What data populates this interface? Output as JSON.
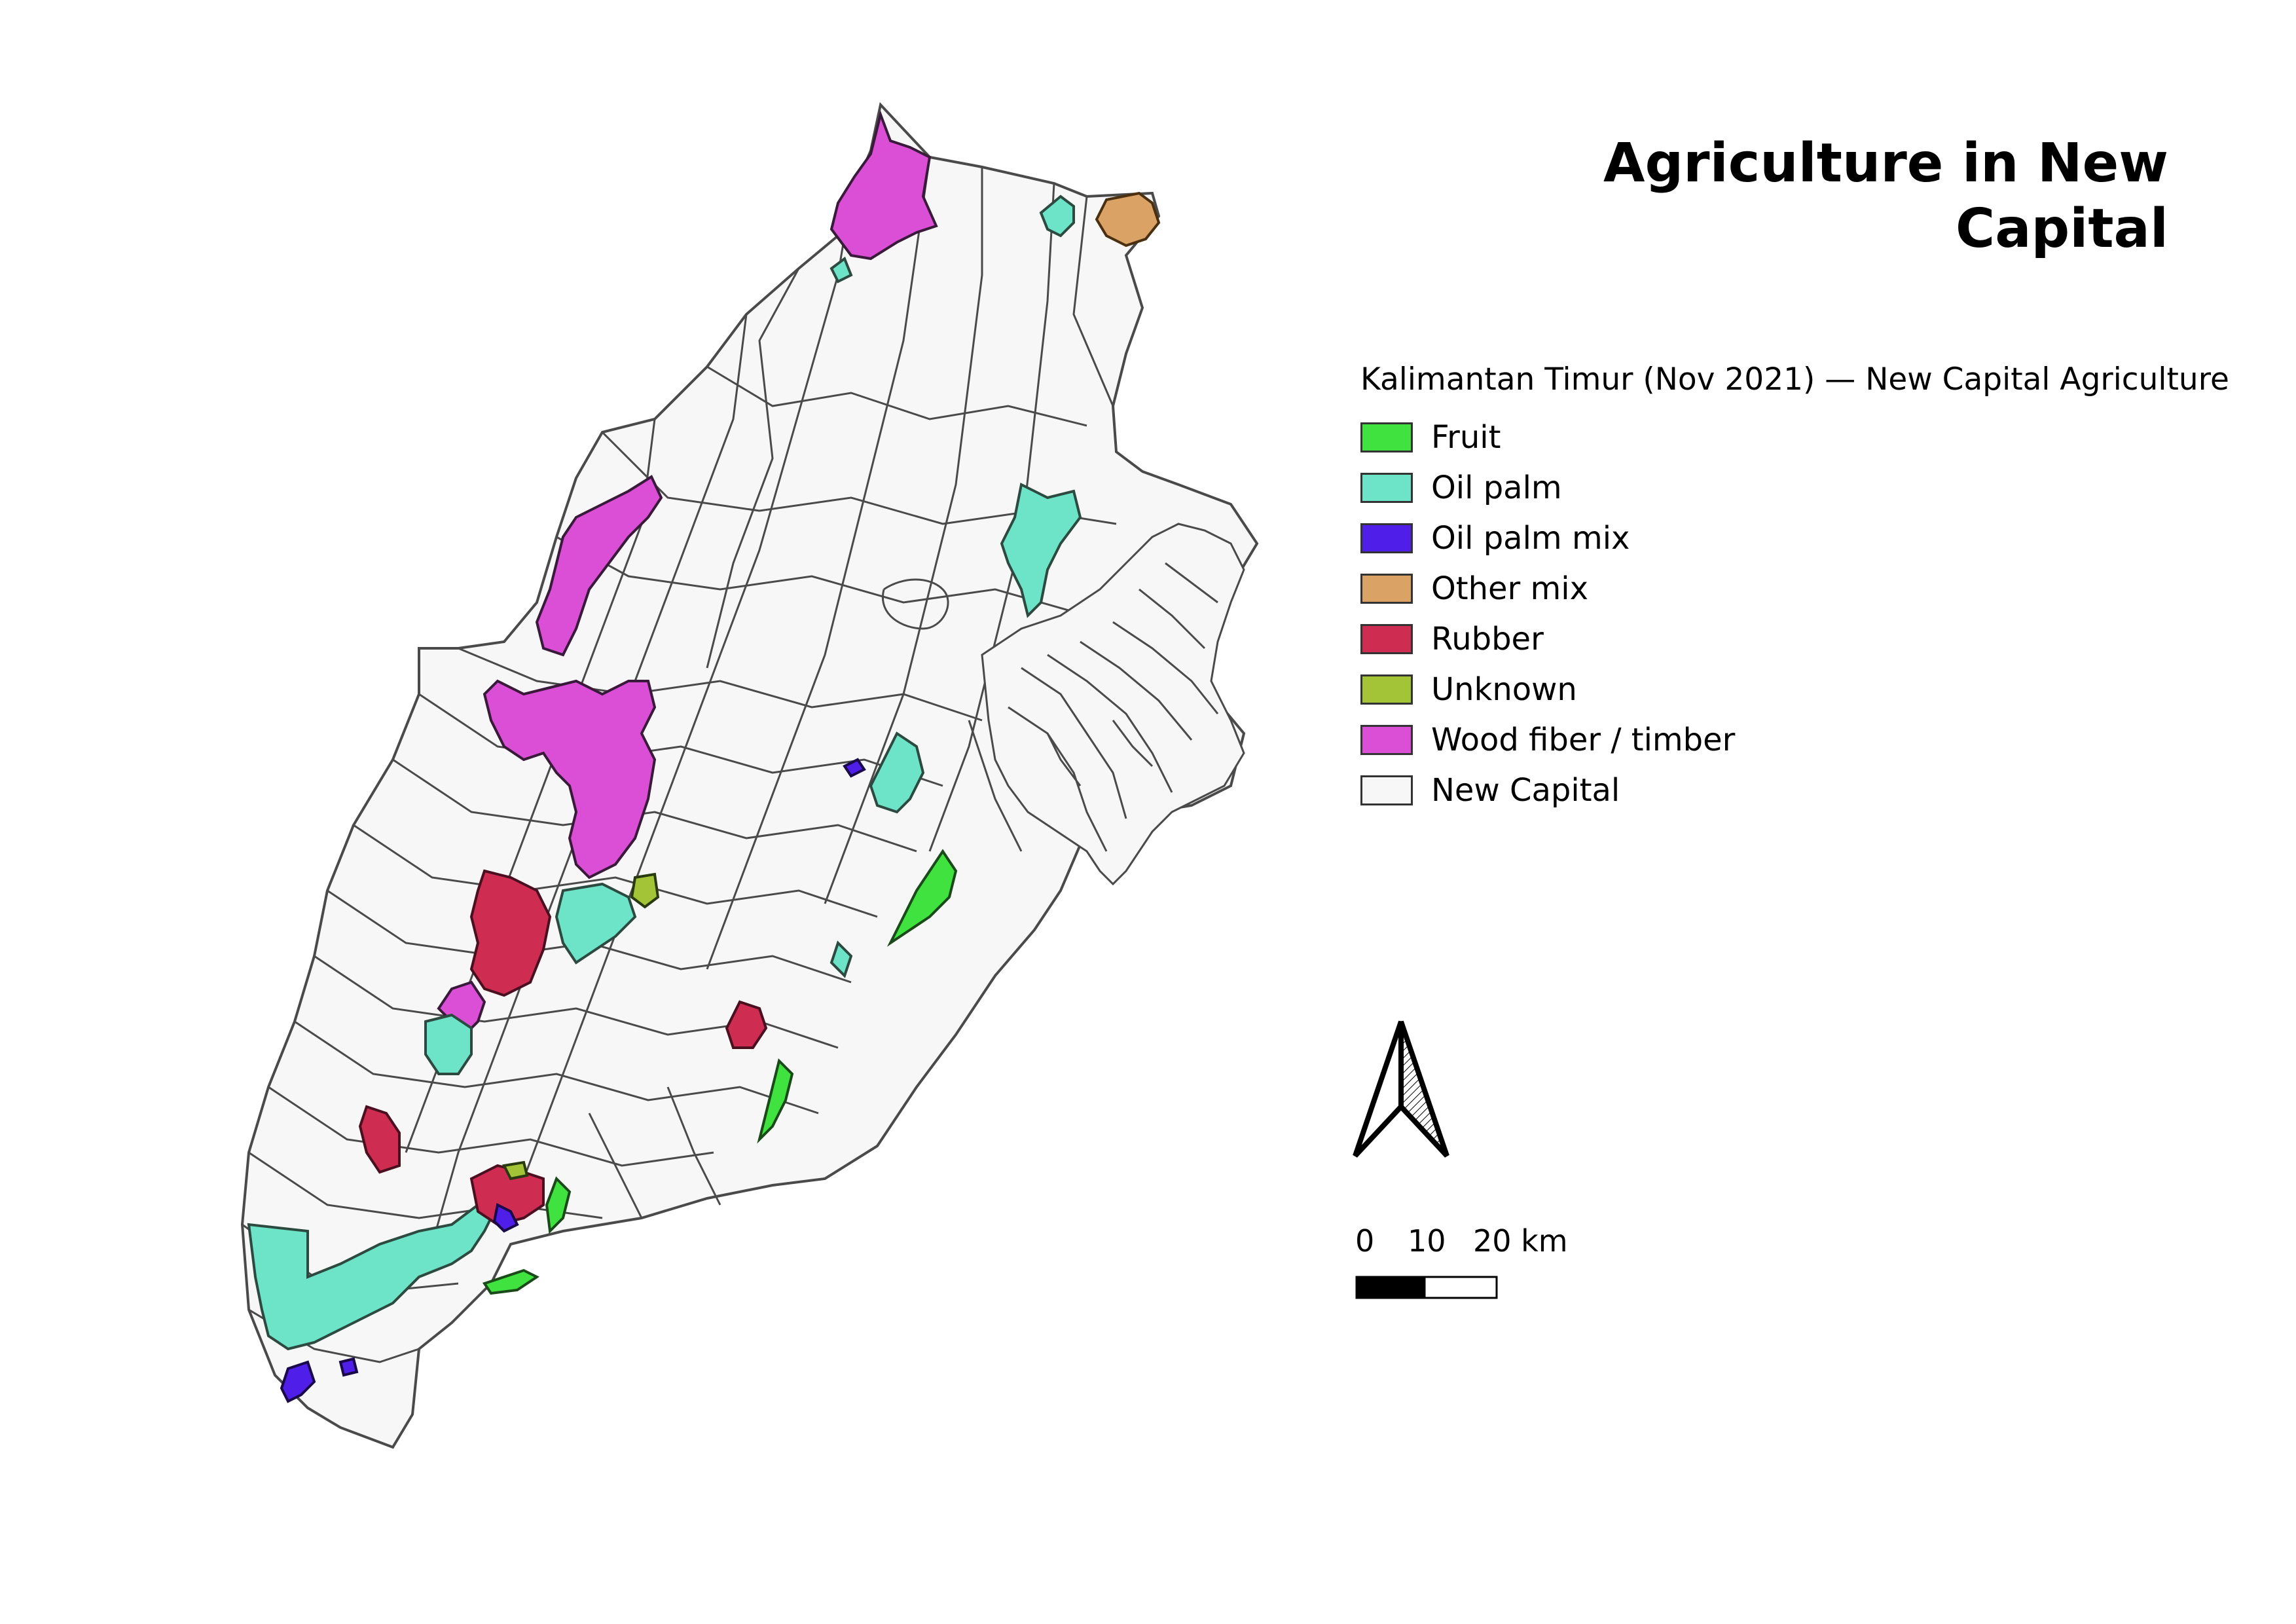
{
  "title": "Agriculture in New Capital",
  "legend": {
    "title": "Kalimantan Timur (Nov 2021) — New Capital Agriculture",
    "items": [
      {
        "label": "Fruit",
        "color": "#3fe23f"
      },
      {
        "label": "Oil palm",
        "color": "#6de3c8"
      },
      {
        "label": "Oil palm mix",
        "color": "#4f1ee8"
      },
      {
        "label": "Other mix",
        "color": "#dba266"
      },
      {
        "label": "Rubber",
        "color": "#cf2c52"
      },
      {
        "label": "Unknown",
        "color": "#a3c436"
      },
      {
        "label": "Wood fiber / timber",
        "color": "#db4fd6"
      },
      {
        "label": "New Capital",
        "color": "#f7f7f7"
      }
    ]
  },
  "scalebar": {
    "labels": [
      "0",
      "10",
      "20 km"
    ]
  },
  "north_arrow": "north-arrow-icon"
}
